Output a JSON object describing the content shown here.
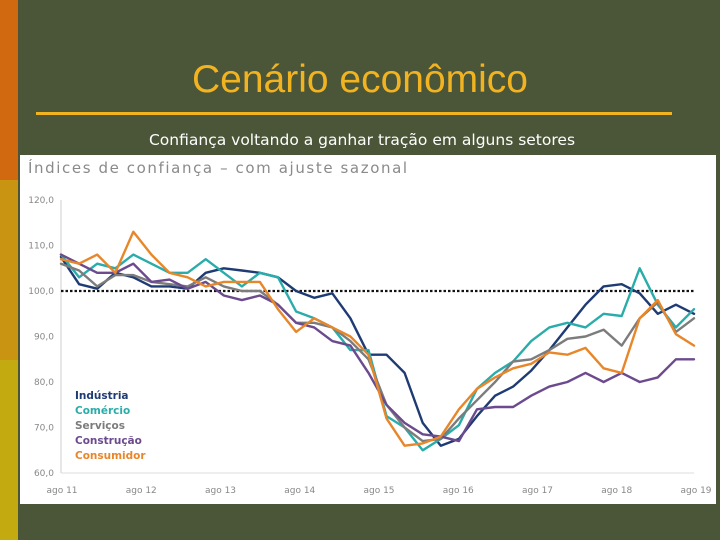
{
  "slide": {
    "title": "Cenário econômico",
    "subtitle": "Confiança voltando a ganhar tração em alguns setores"
  },
  "colors": {
    "background": "#4b5538",
    "title": "#f2b321",
    "strips": [
      "#d0690f",
      "#c89411",
      "#c3aa10"
    ]
  },
  "chart_data": {
    "type": "line",
    "title": "Índices de confiança – com ajuste sazonal",
    "xlabel": "",
    "ylabel": "",
    "ylim": [
      60,
      120
    ],
    "yticks": [
      "120,0",
      "110,0",
      "100,0",
      "90,0",
      "80,0",
      "70,0",
      "60,0"
    ],
    "xticks": [
      "ago 11",
      "ago 12",
      "ago 13",
      "ago 14",
      "ago 15",
      "ago 16",
      "ago 17",
      "ago 18",
      "ago 19"
    ],
    "reference_line": 100,
    "grid": false,
    "legend_position": "bottom-left",
    "series": [
      {
        "name": "Indústria",
        "color": "#1f3b73",
        "values": [
          107.5,
          101.5,
          100.5,
          104,
          103,
          101,
          101,
          100.5,
          104,
          105,
          104.5,
          104,
          103,
          100,
          98.5,
          99.5,
          94,
          86,
          86,
          82,
          71,
          66,
          67.5,
          72.5,
          77,
          79,
          82.5,
          87,
          92,
          97,
          101,
          101.5,
          99.5,
          95,
          97,
          95
        ]
      },
      {
        "name": "Comércio",
        "color": "#2aacaa",
        "values": [
          108,
          103,
          106,
          105,
          108,
          106,
          104,
          104,
          107,
          104,
          101,
          104,
          103,
          95.5,
          94,
          92,
          87,
          87,
          72.5,
          70,
          65,
          67.5,
          70.5,
          78.5,
          82,
          84.5,
          89,
          92,
          93,
          92,
          95,
          94.5,
          105,
          97,
          92,
          96
        ]
      },
      {
        "name": "Serviços",
        "color": "#7c7c7c",
        "values": [
          106,
          104.5,
          101,
          103.5,
          103.5,
          102,
          101.5,
          101,
          103,
          101,
          100,
          100,
          97,
          93,
          93,
          92,
          89,
          85,
          75,
          70,
          67,
          67.5,
          72,
          76,
          80,
          84.5,
          85,
          87,
          89.5,
          90,
          91.5,
          88,
          94,
          97.5,
          91,
          94
        ]
      },
      {
        "name": "Construção",
        "color": "#6b4a8e",
        "values": [
          108,
          106,
          104,
          104,
          106,
          102,
          102.5,
          100.5,
          102,
          99,
          98,
          99,
          97,
          93,
          92,
          89,
          88,
          82,
          75,
          71,
          68.5,
          68,
          67,
          74,
          74.5,
          74.5,
          77,
          79,
          80,
          82,
          80,
          82,
          80,
          81,
          85,
          85
        ]
      },
      {
        "name": "Consumidor",
        "color": "#e8862a",
        "values": [
          107,
          106,
          108,
          104,
          113,
          108,
          104,
          103,
          101,
          102,
          102,
          102,
          96,
          91,
          94,
          92,
          90,
          86,
          72,
          66,
          66.5,
          68,
          74,
          78.5,
          81,
          83,
          84,
          86.5,
          86,
          87.5,
          83,
          82,
          94,
          98,
          90.5,
          88
        ]
      }
    ]
  }
}
